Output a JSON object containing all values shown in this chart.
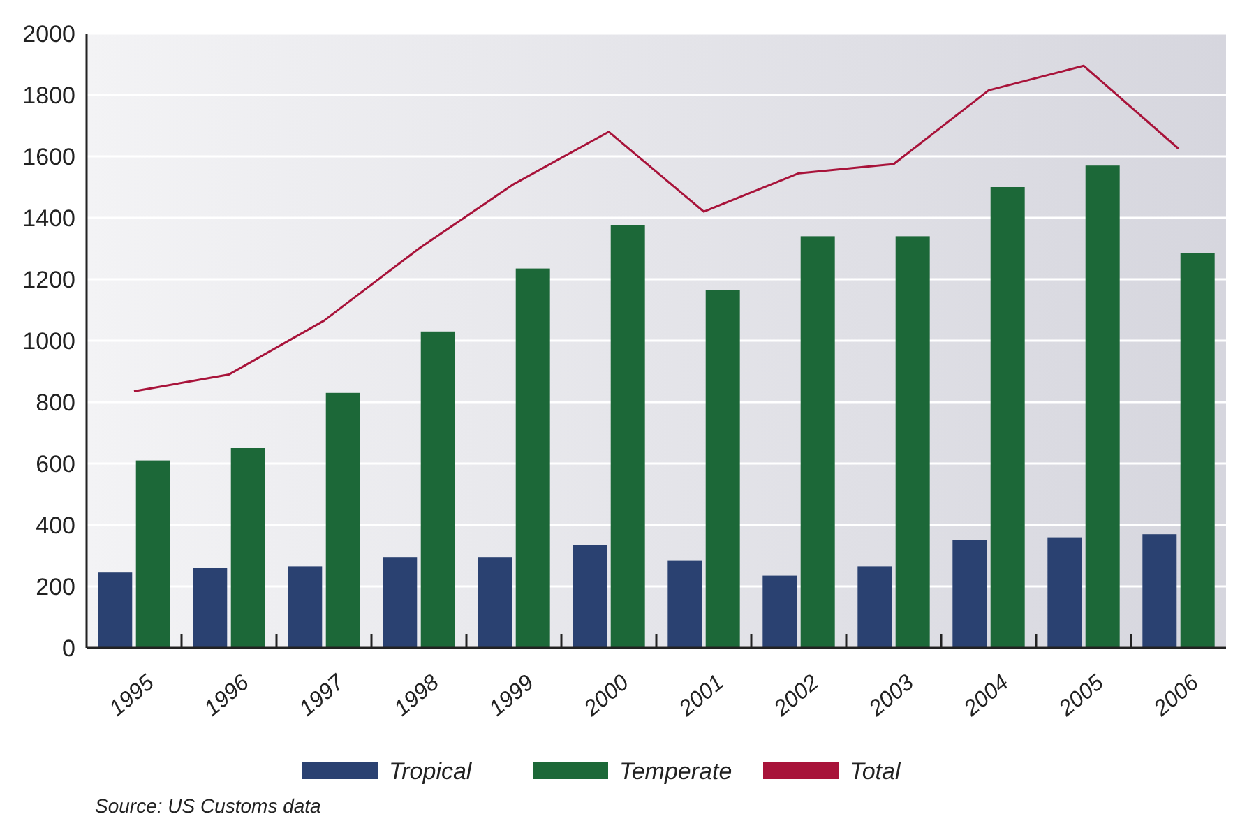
{
  "chart_data": {
    "type": "bar",
    "categories": [
      "1995",
      "1996",
      "1997",
      "1998",
      "1999",
      "2000",
      "2001",
      "2002",
      "2003",
      "2004",
      "2005",
      "2006"
    ],
    "series": [
      {
        "name": "Tropical",
        "color": "#2a4171",
        "values": [
          245,
          260,
          265,
          295,
          295,
          335,
          285,
          235,
          265,
          350,
          360,
          370
        ]
      },
      {
        "name": "Temperate",
        "color": "#1c6838",
        "values": [
          610,
          650,
          830,
          1030,
          1235,
          1375,
          1165,
          1340,
          1340,
          1500,
          1570,
          1285
        ]
      },
      {
        "name": "Total",
        "type": "line",
        "color": "#a8133a",
        "values": [
          835,
          890,
          1065,
          1300,
          1510,
          1680,
          1420,
          1545,
          1575,
          1815,
          1895,
          1625
        ]
      }
    ],
    "ylim": [
      0,
      2000
    ],
    "yticks": [
      0,
      200,
      400,
      600,
      800,
      1000,
      1200,
      1400,
      1600,
      1800,
      2000
    ],
    "grid": "y",
    "legend": "bottom",
    "annotations": [
      "Source: US Customs data"
    ]
  }
}
